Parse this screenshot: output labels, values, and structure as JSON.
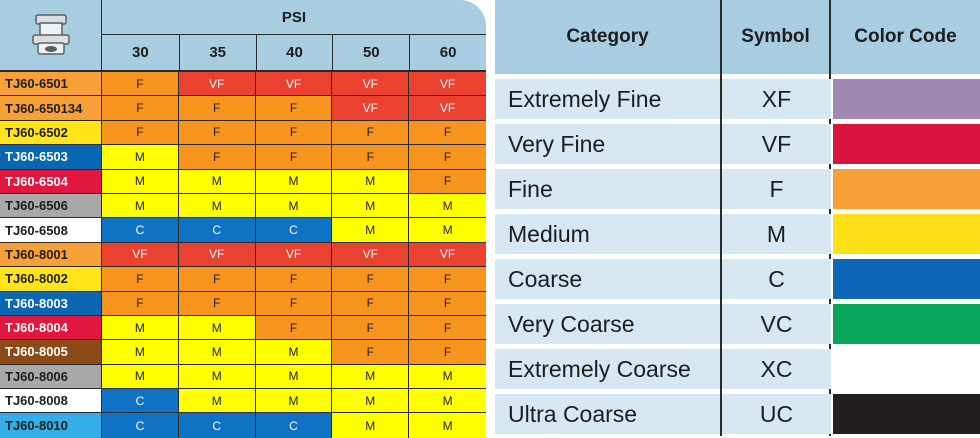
{
  "psi_table": {
    "header": "PSI",
    "pressures": [
      "30",
      "35",
      "40",
      "50",
      "60"
    ],
    "rows": [
      {
        "model": "TJ60-6501",
        "model_color": "#f7a038",
        "model_text": "#1d1d1d",
        "values": [
          "F",
          "VF",
          "VF",
          "VF",
          "VF"
        ]
      },
      {
        "model": "TJ60-650134",
        "model_color": "#f7a038",
        "model_text": "#1d1d1d",
        "values": [
          "F",
          "F",
          "F",
          "VF",
          "VF"
        ]
      },
      {
        "model": "TJ60-6502",
        "model_color": "#ffe419",
        "model_text": "#1d1d1d",
        "values": [
          "F",
          "F",
          "F",
          "F",
          "F"
        ]
      },
      {
        "model": "TJ60-6503",
        "model_color": "#0a68b3",
        "model_text": "#ffffff",
        "values": [
          "M",
          "F",
          "F",
          "F",
          "F"
        ]
      },
      {
        "model": "TJ60-6504",
        "model_color": "#e0173e",
        "model_text": "#ffffff",
        "values": [
          "M",
          "M",
          "M",
          "M",
          "F"
        ]
      },
      {
        "model": "TJ60-6506",
        "model_color": "#a8a8a8",
        "model_text": "#1d1d1d",
        "values": [
          "M",
          "M",
          "M",
          "M",
          "M"
        ]
      },
      {
        "model": "TJ60-6508",
        "model_color": "#ffffff",
        "model_text": "#1d1d1d",
        "values": [
          "C",
          "C",
          "C",
          "M",
          "M"
        ]
      },
      {
        "model": "TJ60-8001",
        "model_color": "#f7a038",
        "model_text": "#1d1d1d",
        "values": [
          "VF",
          "VF",
          "VF",
          "VF",
          "VF"
        ]
      },
      {
        "model": "TJ60-8002",
        "model_color": "#ffe419",
        "model_text": "#1d1d1d",
        "values": [
          "F",
          "F",
          "F",
          "F",
          "F"
        ]
      },
      {
        "model": "TJ60-8003",
        "model_color": "#0a68b3",
        "model_text": "#ffffff",
        "values": [
          "F",
          "F",
          "F",
          "F",
          "F"
        ]
      },
      {
        "model": "TJ60-8004",
        "model_color": "#e0173e",
        "model_text": "#ffffff",
        "values": [
          "M",
          "M",
          "F",
          "F",
          "F"
        ]
      },
      {
        "model": "TJ60-8005",
        "model_color": "#8c4a16",
        "model_text": "#ffffff",
        "values": [
          "M",
          "M",
          "M",
          "F",
          "F"
        ]
      },
      {
        "model": "TJ60-8006",
        "model_color": "#a8a8a8",
        "model_text": "#1d1d1d",
        "values": [
          "M",
          "M",
          "M",
          "M",
          "M"
        ]
      },
      {
        "model": "TJ60-8008",
        "model_color": "#ffffff",
        "model_text": "#1d1d1d",
        "values": [
          "C",
          "M",
          "M",
          "M",
          "M"
        ]
      },
      {
        "model": "TJ60-8010",
        "model_color": "#33aee8",
        "model_text": "#1d1d1d",
        "values": [
          "C",
          "C",
          "C",
          "M",
          "M"
        ]
      }
    ],
    "value_colors": {
      "VF": {
        "bg": "#ea4131",
        "fg": "#ffffff"
      },
      "F": {
        "bg": "#f7941e",
        "fg": "#1d1d1d"
      },
      "M": {
        "bg": "#ffff00",
        "fg": "#1d1d1d"
      },
      "C": {
        "bg": "#0f72c4",
        "fg": "#ffffff"
      }
    }
  },
  "legend": {
    "headers": {
      "category": "Category",
      "symbol": "Symbol",
      "color_code": "Color Code"
    },
    "rows": [
      {
        "category": "Extremely Fine",
        "symbol": "XF",
        "color": "#a08ab2"
      },
      {
        "category": "Very Fine",
        "symbol": "VF",
        "color": "#d91340"
      },
      {
        "category": "Fine",
        "symbol": "F",
        "color": "#f7a038"
      },
      {
        "category": "Medium",
        "symbol": "M",
        "color": "#fbe018"
      },
      {
        "category": "Coarse",
        "symbol": "C",
        "color": "#0f65b8"
      },
      {
        "category": "Very Coarse",
        "symbol": "VC",
        "color": "#06a65a"
      },
      {
        "category": "Extremely Coarse",
        "symbol": "XC",
        "color": "#ffffff"
      },
      {
        "category": "Ultra Coarse",
        "symbol": "UC",
        "color": "#231f20"
      }
    ]
  }
}
